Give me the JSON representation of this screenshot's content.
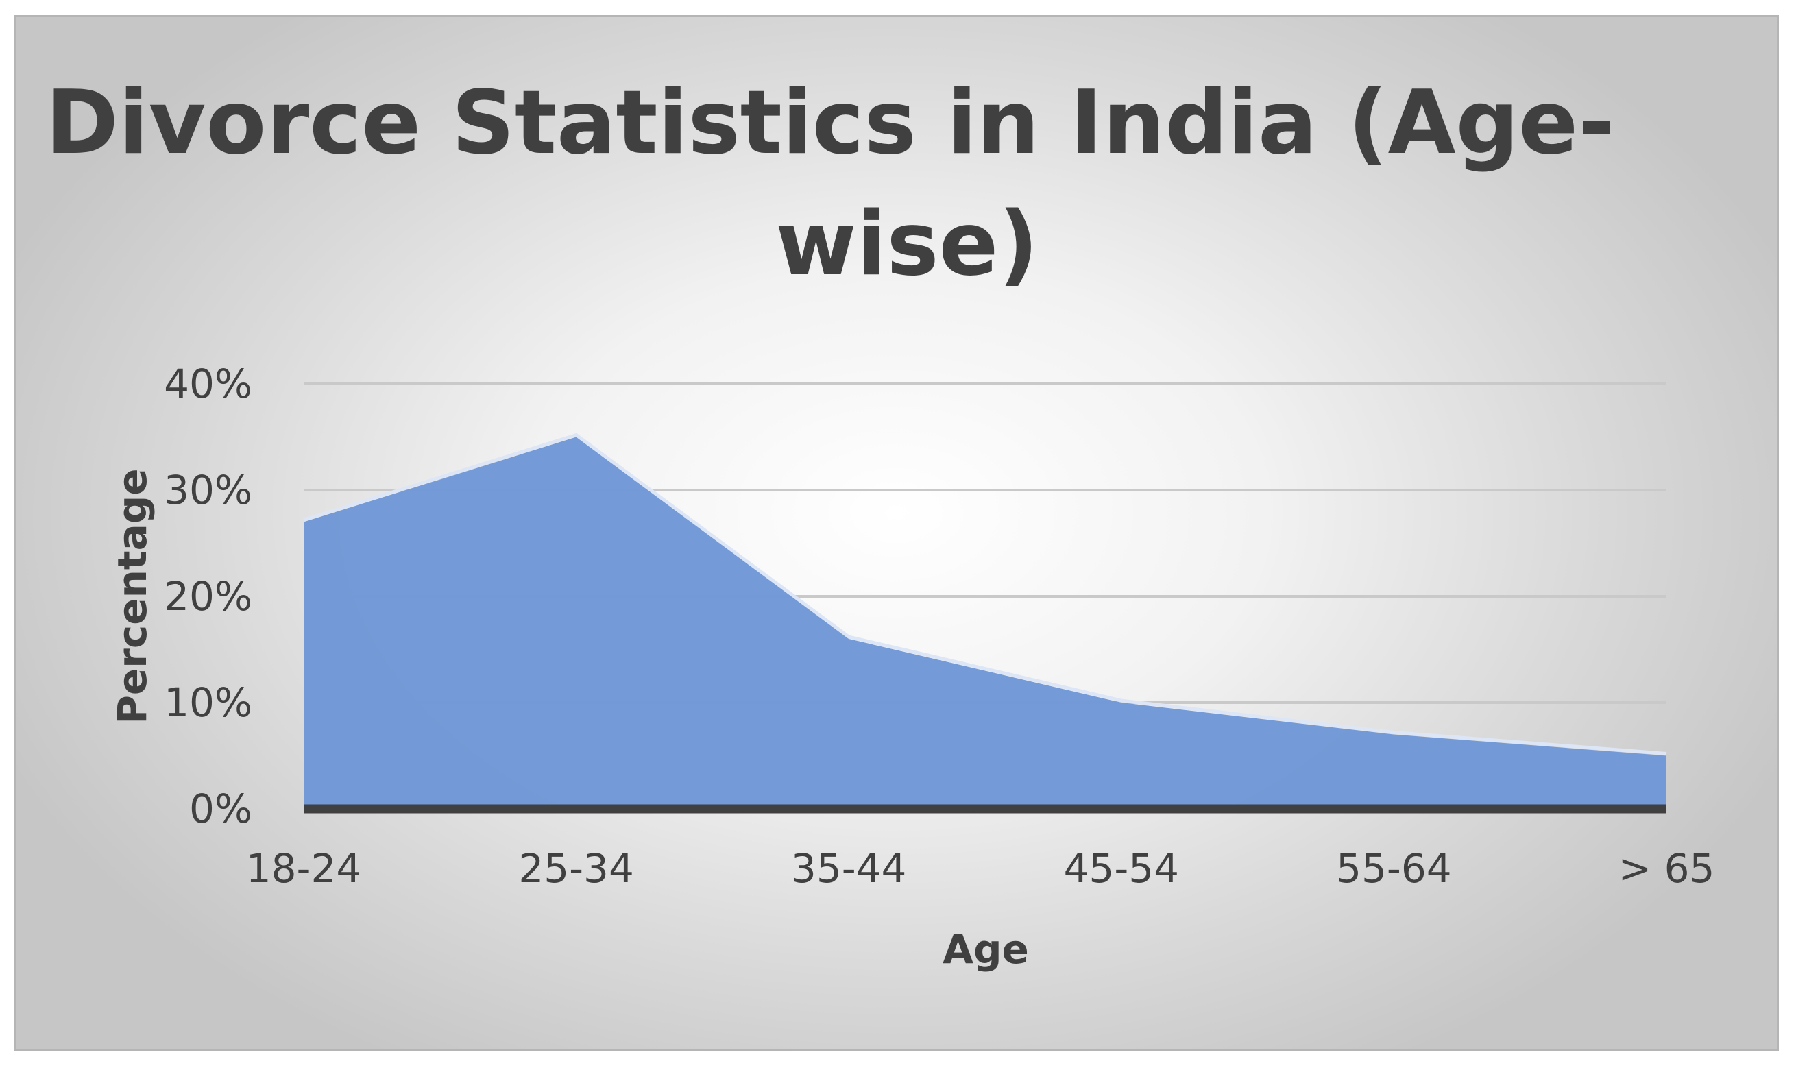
{
  "chart_data": {
    "type": "area",
    "title_lines": [
      "Divorce Statistics in India (Age-",
      "wise)"
    ],
    "xlabel": "Age",
    "ylabel": "Percentage",
    "categories": [
      "18-24",
      "25-34",
      "35-44",
      "45-54",
      "55-64",
      "> 65"
    ],
    "y_ticks": [
      "0%",
      "10%",
      "20%",
      "30%",
      "40%"
    ],
    "ylim": [
      0,
      40
    ],
    "series": [
      {
        "values": [
          27,
          35,
          16,
          10,
          7,
          5
        ]
      }
    ],
    "grid": true,
    "colors": {
      "area_fill": "#7097d6",
      "area_edge": "#dce6f7",
      "gridline": "#c9c9c9",
      "baseline": "#404040",
      "text": "#404040"
    }
  }
}
